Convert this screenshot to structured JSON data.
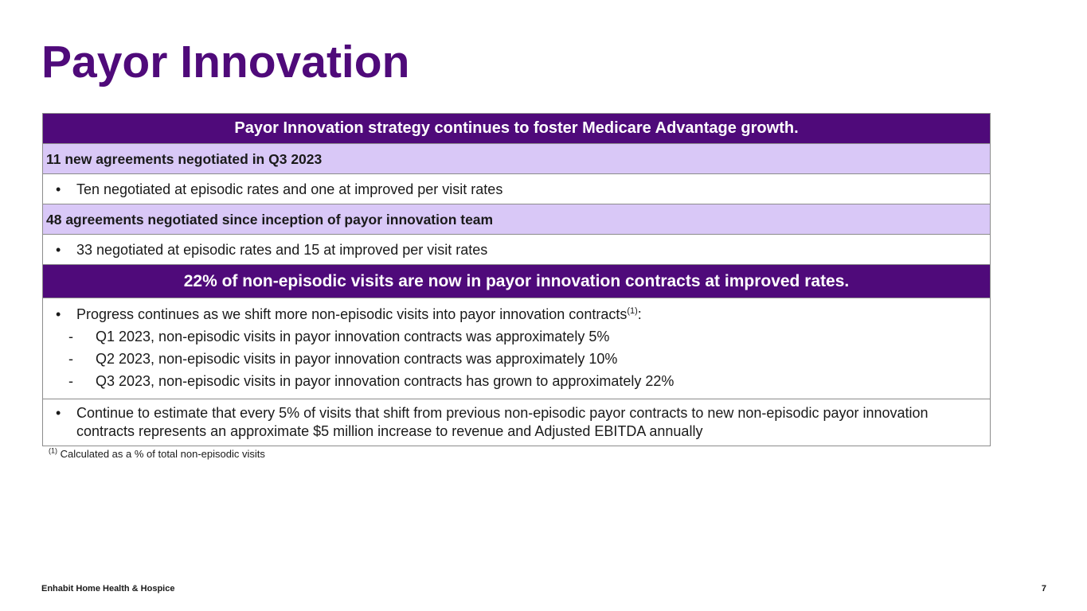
{
  "slide": {
    "title": "Payor Innovation",
    "footer_company": "Enhabit Home Health & Hospice",
    "page_number": "7",
    "footnote_marker": "(1)",
    "footnote_text": "Calculated as a % of total non-episodic visits"
  },
  "panel": {
    "header1": "Payor Innovation strategy continues to foster Medicare Advantage growth.",
    "sub1": "11 new agreements negotiated in Q3 2023",
    "bullet1": "Ten negotiated at episodic rates and one at improved per visit rates",
    "sub2": "48 agreements negotiated since inception of payor innovation team",
    "bullet2": "33 negotiated at episodic rates and 15 at improved per visit rates",
    "header2": "22% of non-episodic visits are now in payor innovation contracts at improved rates.",
    "progress_bullet": "Progress continues as we shift more non-episodic visits into payor innovation contracts",
    "progress_sup": "(1)",
    "progress_suffix": ":",
    "dash_items": [
      "Q1 2023, non-episodic visits in payor innovation contracts was approximately 5%",
      "Q2 2023, non-episodic visits in payor innovation contracts was approximately 10%",
      "Q3 2023, non-episodic visits in payor innovation contracts has grown to approximately 22%"
    ],
    "estimate_bullet": "Continue to estimate that every 5% of visits that shift from previous non-episodic payor contracts to new non-episodic payor innovation contracts represents an approximate $5 million increase to revenue and Adjusted EBITDA annually"
  },
  "colors": {
    "brand_purple": "#4f0a7a",
    "light_lavender": "#d9c8f7"
  }
}
